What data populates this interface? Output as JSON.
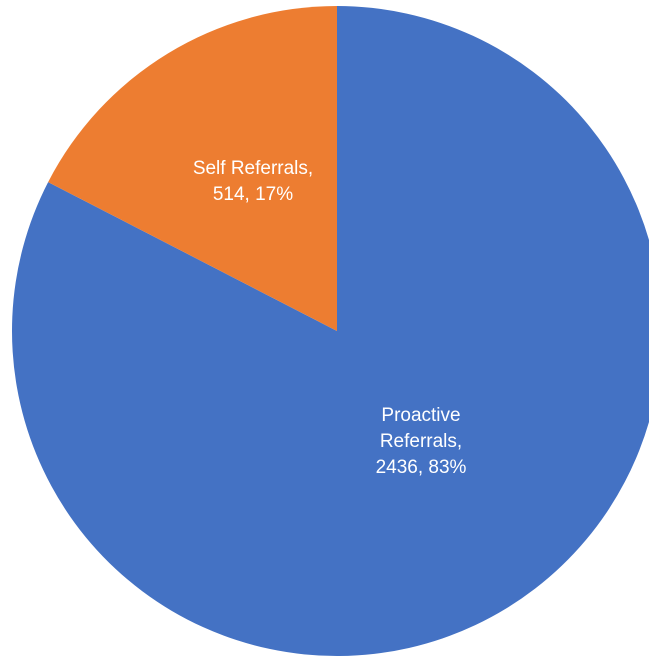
{
  "chart_data": {
    "type": "pie",
    "title": "",
    "start_angle_deg": 0,
    "direction": "clockwise",
    "slices": [
      {
        "name": "Proactive Referrals",
        "value": 2436,
        "percent": 83,
        "color": "#4472C4",
        "label_lines": [
          "Proactive",
          "Referrals,",
          "2436, 83%"
        ]
      },
      {
        "name": "Self Referrals",
        "value": 514,
        "percent": 17,
        "color": "#ED7D31",
        "label_lines": [
          "Self Referrals,",
          "514, 17%"
        ]
      }
    ]
  }
}
